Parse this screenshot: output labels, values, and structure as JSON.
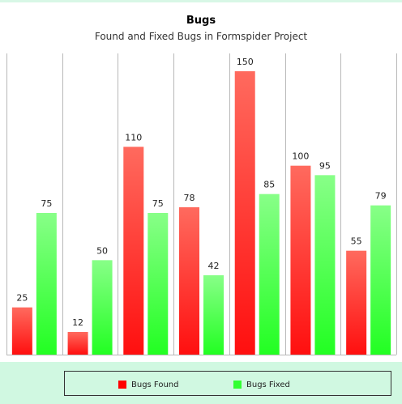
{
  "chart_data": {
    "type": "bar",
    "title": "Bugs",
    "subtitle": "Found and Fixed Bugs in Formspider Project",
    "categories": [
      "",
      "",
      "",
      "",
      "",
      "",
      ""
    ],
    "series": [
      {
        "name": "Bugs Found",
        "color": "#ff2020",
        "values": [
          25,
          12,
          110,
          78,
          150,
          100,
          55
        ]
      },
      {
        "name": "Bugs Fixed",
        "color": "#33ff33",
        "values": [
          75,
          50,
          75,
          42,
          85,
          95,
          79
        ]
      }
    ],
    "ylim": [
      0,
      160
    ],
    "grid": true,
    "legend_position": "bottom"
  }
}
